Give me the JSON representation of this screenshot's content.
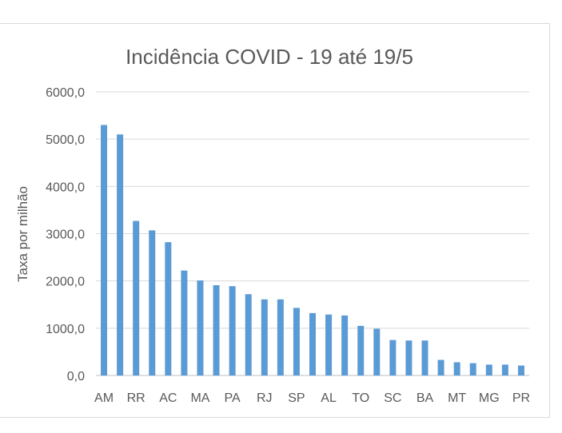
{
  "chart_data": {
    "type": "bar",
    "title": "Incidência COVID - 19 até 19/5",
    "xlabel": "",
    "ylabel": "Taxa por milhão",
    "ylim": [
      0,
      6000
    ],
    "yticks": [
      "0,0",
      "1000,0",
      "2000,0",
      "3000,0",
      "4000,0",
      "5000,0",
      "6000,0"
    ],
    "grid": true,
    "legend": "none",
    "bar_color": "#5b9bd5",
    "categories": [
      "AM",
      "",
      "RR",
      "",
      "AC",
      "",
      "MA",
      "",
      "PA",
      "",
      "RJ",
      "",
      "SP",
      "",
      "AL",
      "",
      "TO",
      "",
      "SC",
      "",
      "BA",
      "",
      "MT",
      "",
      "MG",
      "",
      "PR"
    ],
    "values": [
      5300,
      5100,
      3270,
      3070,
      2820,
      2220,
      2010,
      1910,
      1890,
      1720,
      1610,
      1610,
      1430,
      1320,
      1290,
      1270,
      1050,
      990,
      750,
      740,
      740,
      330,
      280,
      260,
      230,
      230,
      210
    ]
  }
}
